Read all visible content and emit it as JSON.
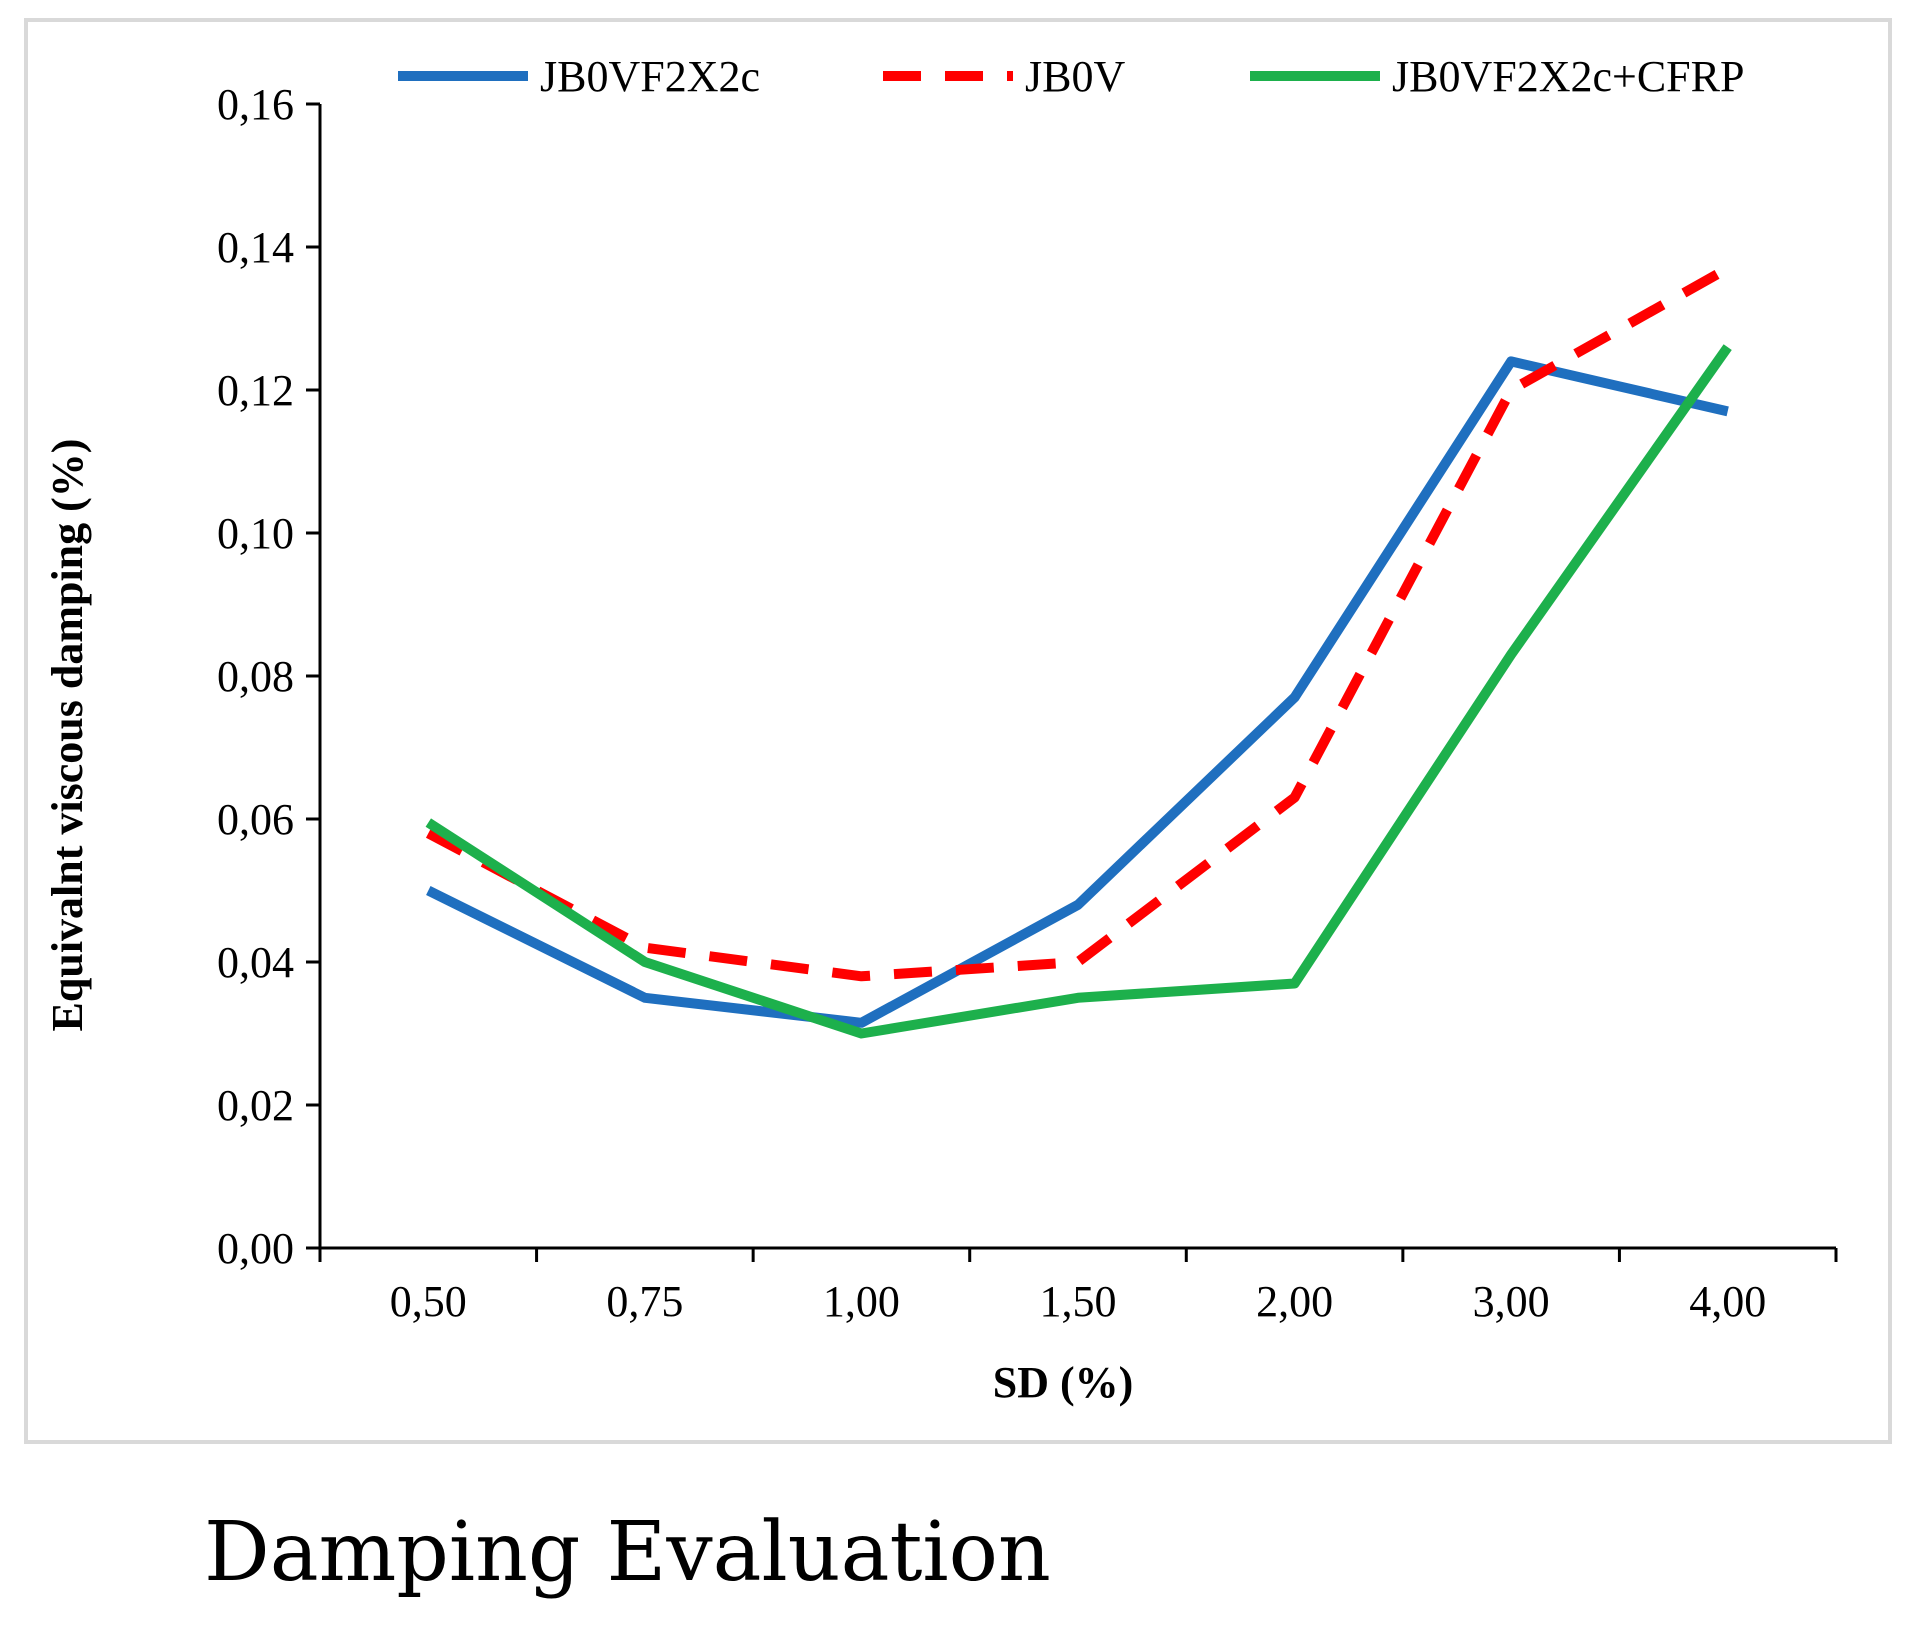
{
  "caption": "Damping Evaluation",
  "chart_data": {
    "type": "line",
    "title": "",
    "xlabel": "SD (%)",
    "ylabel": "Equivalnt viscous damping (%)",
    "categories": [
      "0,50",
      "0,75",
      "1,00",
      "1,50",
      "2,00",
      "3,00",
      "4,00"
    ],
    "ylim": [
      0,
      0.16
    ],
    "yticks": [
      "0,00",
      "0,02",
      "0,04",
      "0,06",
      "0,08",
      "0,10",
      "0,12",
      "0,14",
      "0,16"
    ],
    "grid": false,
    "legend_position": "top",
    "series": [
      {
        "name": "JB0VF2X2c",
        "color": "#1f6fbf",
        "dashed": false,
        "values": [
          0.05,
          0.035,
          0.0315,
          0.048,
          0.077,
          0.124,
          0.117
        ]
      },
      {
        "name": "JB0V",
        "color": "#ff0000",
        "dashed": true,
        "values": [
          0.058,
          0.042,
          0.038,
          0.04,
          0.063,
          0.12,
          0.137
        ]
      },
      {
        "name": "JB0VF2X2c+CFRP",
        "color": "#1db04c",
        "dashed": false,
        "values": [
          0.0595,
          0.04,
          0.03,
          0.035,
          0.037,
          0.083,
          0.126
        ]
      }
    ]
  }
}
